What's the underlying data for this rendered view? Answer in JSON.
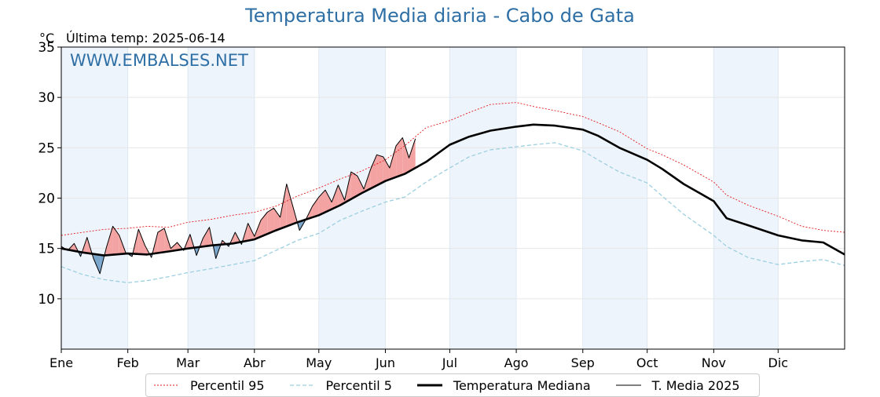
{
  "title": "Temperatura Media diaria - Cabo de Gata",
  "unit": "°C",
  "last_temp_label": "Última temp: 2025-06-14",
  "watermark": "WWW.EMBALSES.NET",
  "legend": [
    {
      "label": "Percentil 95",
      "key": "p95"
    },
    {
      "label": "Percentil 5",
      "key": "p5"
    },
    {
      "label": "Temperatura Mediana",
      "key": "median"
    },
    {
      "label": "T. Media 2025",
      "key": "current"
    }
  ],
  "colors": {
    "p95": "#e31a1c",
    "p5": "#9ccfe0",
    "median": "#000000",
    "current": "#000000",
    "above_fill": "#f4a3a3",
    "below_fill": "#7aa6cc",
    "month_band": "#eef4fb",
    "title": "#2e6fa5"
  },
  "chart_data": {
    "type": "line",
    "xlabel": "",
    "ylabel": "°C",
    "xlim": [
      0,
      365
    ],
    "ylim": [
      5,
      35
    ],
    "yticks": [
      10,
      15,
      20,
      25,
      30,
      35
    ],
    "month_labels": [
      "Ene",
      "Feb",
      "Mar",
      "Abr",
      "May",
      "Jun",
      "Jul",
      "Ago",
      "Sep",
      "Oct",
      "Nov",
      "Dic"
    ],
    "month_starts": [
      0,
      31,
      59,
      90,
      120,
      151,
      181,
      212,
      243,
      273,
      304,
      334
    ],
    "grid": true,
    "series": [
      {
        "name": "Percentil 95",
        "x": [
          0,
          10,
          20,
          31,
          40,
          50,
          59,
          70,
          80,
          90,
          100,
          110,
          120,
          130,
          140,
          151,
          160,
          170,
          181,
          190,
          200,
          212,
          220,
          230,
          243,
          250,
          260,
          273,
          280,
          290,
          304,
          310,
          320,
          334,
          345,
          355,
          365
        ],
        "values": [
          16.3,
          16.6,
          16.9,
          17.0,
          17.2,
          17.1,
          17.6,
          17.9,
          18.3,
          18.6,
          19.2,
          20.2,
          21.0,
          21.9,
          22.7,
          23.8,
          25.2,
          27.0,
          27.7,
          28.5,
          29.3,
          29.5,
          29.1,
          28.7,
          28.1,
          27.5,
          26.6,
          24.9,
          24.3,
          23.3,
          21.6,
          20.3,
          19.3,
          18.2,
          17.2,
          16.8,
          16.6
        ]
      },
      {
        "name": "Percentil 5",
        "x": [
          0,
          10,
          20,
          31,
          40,
          50,
          59,
          70,
          80,
          90,
          100,
          110,
          120,
          130,
          140,
          151,
          160,
          170,
          181,
          190,
          200,
          212,
          220,
          230,
          243,
          250,
          260,
          273,
          280,
          290,
          304,
          310,
          320,
          334,
          345,
          355,
          365
        ],
        "values": [
          13.2,
          12.4,
          11.9,
          11.6,
          11.8,
          12.2,
          12.6,
          13.0,
          13.4,
          13.8,
          14.8,
          15.8,
          16.5,
          17.8,
          18.7,
          19.6,
          20.1,
          21.6,
          23.0,
          24.1,
          24.8,
          25.1,
          25.3,
          25.5,
          24.7,
          23.8,
          22.6,
          21.5,
          20.2,
          18.4,
          16.3,
          15.2,
          14.1,
          13.4,
          13.7,
          13.9,
          13.3
        ]
      },
      {
        "name": "Temperatura Mediana",
        "x": [
          0,
          10,
          20,
          31,
          40,
          50,
          59,
          70,
          80,
          90,
          100,
          110,
          120,
          130,
          140,
          151,
          160,
          170,
          181,
          190,
          200,
          212,
          220,
          230,
          243,
          250,
          260,
          273,
          280,
          290,
          304,
          310,
          320,
          334,
          345,
          355,
          365
        ],
        "values": [
          15.0,
          14.6,
          14.3,
          14.5,
          14.4,
          14.7,
          15.0,
          15.3,
          15.5,
          15.9,
          16.8,
          17.6,
          18.3,
          19.3,
          20.5,
          21.7,
          22.4,
          23.6,
          25.3,
          26.1,
          26.7,
          27.1,
          27.3,
          27.2,
          26.8,
          26.2,
          25.0,
          23.8,
          22.9,
          21.4,
          19.7,
          18.0,
          17.3,
          16.3,
          15.8,
          15.6,
          14.4
        ]
      },
      {
        "name": "T. Media 2025",
        "x": [
          0,
          3,
          6,
          9,
          12,
          15,
          18,
          21,
          24,
          27,
          30,
          33,
          36,
          39,
          42,
          45,
          48,
          51,
          54,
          57,
          60,
          63,
          66,
          69,
          72,
          75,
          78,
          81,
          84,
          87,
          90,
          93,
          96,
          99,
          102,
          105,
          108,
          111,
          114,
          117,
          120,
          123,
          126,
          129,
          132,
          135,
          138,
          141,
          144,
          147,
          150,
          153,
          156,
          159,
          162,
          165
        ],
        "values": [
          15.2,
          14.8,
          15.5,
          14.2,
          16.1,
          14.0,
          12.5,
          15.1,
          17.2,
          16.3,
          14.6,
          14.2,
          16.9,
          15.3,
          14.1,
          16.6,
          17.0,
          15.0,
          15.6,
          14.8,
          16.4,
          14.3,
          16.0,
          17.1,
          14.0,
          15.8,
          15.2,
          16.6,
          15.4,
          17.5,
          16.2,
          17.8,
          18.6,
          19.0,
          18.1,
          21.4,
          19.1,
          16.8,
          17.9,
          19.2,
          20.1,
          20.8,
          19.6,
          21.3,
          19.8,
          22.6,
          22.2,
          20.9,
          22.8,
          24.3,
          24.1,
          23.0,
          25.2,
          26.0,
          24.0,
          25.9
        ]
      }
    ]
  }
}
